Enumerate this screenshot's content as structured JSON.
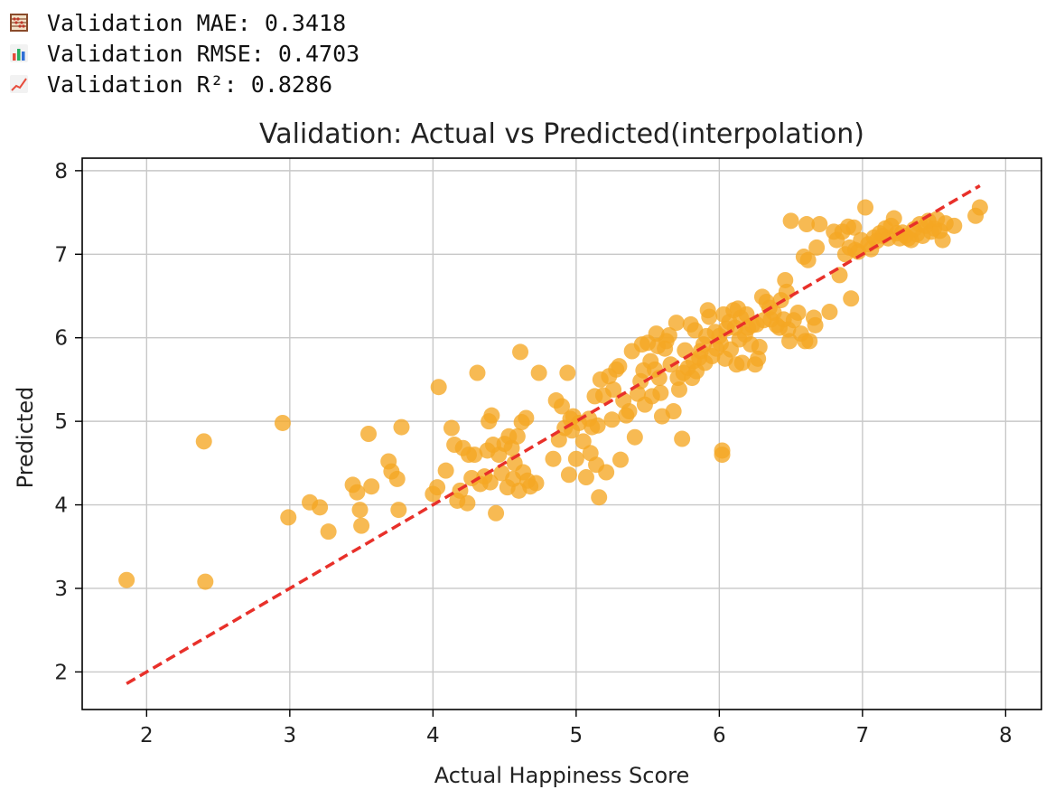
{
  "metrics": {
    "mae": {
      "icon": "abacus-icon",
      "text": "Validation MAE: 0.3418"
    },
    "rmse": {
      "icon": "bar-chart-icon",
      "text": "Validation RMSE: 0.4703"
    },
    "r2": {
      "icon": "line-chart-icon",
      "text": "Validation R²: 0.8286"
    }
  },
  "chart_data": {
    "type": "scatter",
    "title": "Validation: Actual vs Predicted(interpolation)",
    "xlabel": "Actual Happiness Score",
    "ylabel": "Predicted",
    "xlim": [
      1.55,
      8.25
    ],
    "ylim": [
      1.55,
      8.15
    ],
    "xticks": [
      2,
      3,
      4,
      5,
      6,
      7,
      8
    ],
    "yticks": [
      2,
      3,
      4,
      5,
      6,
      7,
      8
    ],
    "xtick_labels": [
      "2",
      "3",
      "4",
      "5",
      "6",
      "7",
      "8"
    ],
    "ytick_labels": [
      "2",
      "3",
      "4",
      "5",
      "6",
      "7",
      "8"
    ],
    "grid": true,
    "point_color": "#f5a623",
    "line_color": "#e8302a",
    "reference_line": {
      "x": [
        1.86,
        7.82
      ],
      "y": [
        1.86,
        7.82
      ],
      "style": "dashed"
    },
    "points": [
      [
        1.86,
        3.1
      ],
      [
        2.4,
        4.76
      ],
      [
        2.41,
        3.08
      ],
      [
        2.95,
        4.98
      ],
      [
        2.99,
        3.85
      ],
      [
        3.14,
        4.03
      ],
      [
        3.21,
        3.97
      ],
      [
        3.27,
        3.68
      ],
      [
        3.44,
        4.24
      ],
      [
        3.47,
        4.15
      ],
      [
        3.49,
        3.94
      ],
      [
        3.5,
        3.75
      ],
      [
        3.55,
        4.85
      ],
      [
        3.57,
        4.22
      ],
      [
        3.69,
        4.52
      ],
      [
        3.71,
        4.4
      ],
      [
        3.75,
        4.31
      ],
      [
        3.76,
        3.94
      ],
      [
        3.78,
        4.93
      ],
      [
        4.0,
        4.13
      ],
      [
        4.03,
        4.21
      ],
      [
        4.04,
        5.41
      ],
      [
        4.09,
        4.41
      ],
      [
        4.13,
        4.92
      ],
      [
        4.15,
        4.72
      ],
      [
        4.17,
        4.05
      ],
      [
        4.19,
        4.17
      ],
      [
        4.21,
        4.68
      ],
      [
        4.24,
        4.02
      ],
      [
        4.25,
        4.6
      ],
      [
        4.27,
        4.32
      ],
      [
        4.29,
        4.6
      ],
      [
        4.31,
        5.58
      ],
      [
        4.33,
        4.25
      ],
      [
        4.36,
        4.34
      ],
      [
        4.38,
        4.65
      ],
      [
        4.39,
        5.0
      ],
      [
        4.4,
        4.27
      ],
      [
        4.41,
        5.07
      ],
      [
        4.42,
        4.72
      ],
      [
        4.44,
        3.9
      ],
      [
        4.46,
        4.6
      ],
      [
        4.48,
        4.38
      ],
      [
        4.5,
        4.73
      ],
      [
        4.52,
        4.21
      ],
      [
        4.53,
        4.82
      ],
      [
        4.55,
        4.68
      ],
      [
        4.56,
        4.31
      ],
      [
        4.57,
        4.5
      ],
      [
        4.59,
        4.82
      ],
      [
        4.6,
        4.17
      ],
      [
        4.61,
        5.83
      ],
      [
        4.62,
        4.99
      ],
      [
        4.63,
        4.39
      ],
      [
        4.65,
        5.04
      ],
      [
        4.66,
        4.29
      ],
      [
        4.68,
        4.22
      ],
      [
        4.72,
        4.26
      ],
      [
        4.74,
        5.58
      ],
      [
        4.84,
        4.55
      ],
      [
        4.86,
        5.25
      ],
      [
        4.88,
        4.78
      ],
      [
        4.9,
        5.18
      ],
      [
        4.92,
        4.92
      ],
      [
        4.94,
        5.58
      ],
      [
        4.95,
        4.36
      ],
      [
        4.96,
        5.03
      ],
      [
        4.97,
        4.89
      ],
      [
        4.98,
        5.06
      ],
      [
        5.0,
        4.55
      ],
      [
        5.02,
        4.98
      ],
      [
        5.05,
        4.76
      ],
      [
        5.07,
        4.33
      ],
      [
        5.09,
        5.03
      ],
      [
        5.1,
        4.62
      ],
      [
        5.11,
        4.93
      ],
      [
        5.13,
        5.3
      ],
      [
        5.14,
        4.48
      ],
      [
        5.15,
        4.95
      ],
      [
        5.16,
        4.09
      ],
      [
        5.17,
        5.5
      ],
      [
        5.19,
        5.31
      ],
      [
        5.21,
        4.39
      ],
      [
        5.23,
        5.54
      ],
      [
        5.25,
        5.02
      ],
      [
        5.26,
        5.38
      ],
      [
        5.28,
        5.62
      ],
      [
        5.3,
        5.66
      ],
      [
        5.31,
        4.54
      ],
      [
        5.33,
        5.25
      ],
      [
        5.35,
        5.07
      ],
      [
        5.37,
        5.12
      ],
      [
        5.39,
        5.84
      ],
      [
        5.41,
        4.81
      ],
      [
        5.43,
        5.33
      ],
      [
        5.45,
        5.48
      ],
      [
        5.46,
        5.92
      ],
      [
        5.47,
        5.61
      ],
      [
        5.48,
        5.2
      ],
      [
        5.5,
        5.94
      ],
      [
        5.52,
        5.72
      ],
      [
        5.53,
        5.3
      ],
      [
        5.55,
        5.62
      ],
      [
        5.56,
        6.05
      ],
      [
        5.57,
        5.9
      ],
      [
        5.58,
        5.52
      ],
      [
        5.59,
        5.34
      ],
      [
        5.6,
        5.06
      ],
      [
        5.62,
        5.87
      ],
      [
        5.63,
        5.96
      ],
      [
        5.65,
        6.03
      ],
      [
        5.66,
        5.68
      ],
      [
        5.68,
        5.12
      ],
      [
        5.7,
        6.18
      ],
      [
        5.71,
        5.52
      ],
      [
        5.72,
        5.38
      ],
      [
        5.74,
        4.79
      ],
      [
        5.75,
        5.58
      ],
      [
        5.76,
        5.85
      ],
      [
        5.78,
        5.64
      ],
      [
        5.8,
        6.16
      ],
      [
        5.81,
        5.52
      ],
      [
        5.82,
        5.72
      ],
      [
        5.83,
        6.09
      ],
      [
        5.84,
        5.6
      ],
      [
        5.86,
        5.76
      ],
      [
        5.87,
        5.84
      ],
      [
        5.89,
        5.92
      ],
      [
        5.9,
        5.7
      ],
      [
        5.91,
        6.02
      ],
      [
        5.92,
        6.33
      ],
      [
        5.93,
        6.25
      ],
      [
        5.95,
        5.78
      ],
      [
        5.97,
        6.07
      ],
      [
        5.98,
        5.87
      ],
      [
        6.0,
        6.02
      ],
      [
        6.01,
        5.93
      ],
      [
        6.02,
        4.65
      ],
      [
        6.02,
        4.6
      ],
      [
        6.03,
        6.28
      ],
      [
        6.04,
        5.75
      ],
      [
        6.05,
        6.11
      ],
      [
        6.07,
        6.19
      ],
      [
        6.08,
        5.86
      ],
      [
        6.1,
        6.33
      ],
      [
        6.11,
        6.12
      ],
      [
        6.12,
        5.68
      ],
      [
        6.13,
        6.35
      ],
      [
        6.14,
        5.98
      ],
      [
        6.15,
        6.24
      ],
      [
        6.16,
        5.7
      ],
      [
        6.18,
        6.04
      ],
      [
        6.19,
        6.28
      ],
      [
        6.2,
        6.12
      ],
      [
        6.22,
        5.92
      ],
      [
        6.23,
        6.15
      ],
      [
        6.25,
        5.68
      ],
      [
        6.26,
        6.16
      ],
      [
        6.27,
        5.75
      ],
      [
        6.28,
        5.89
      ],
      [
        6.3,
        6.49
      ],
      [
        6.31,
        6.21
      ],
      [
        6.33,
        6.43
      ],
      [
        6.35,
        6.36
      ],
      [
        6.36,
        6.22
      ],
      [
        6.38,
        6.3
      ],
      [
        6.4,
        6.15
      ],
      [
        6.42,
        6.12
      ],
      [
        6.43,
        6.45
      ],
      [
        6.45,
        6.22
      ],
      [
        6.46,
        6.69
      ],
      [
        6.47,
        6.55
      ],
      [
        6.48,
        6.1
      ],
      [
        6.49,
        5.96
      ],
      [
        6.5,
        7.4
      ],
      [
        6.52,
        6.21
      ],
      [
        6.55,
        6.3
      ],
      [
        6.57,
        6.05
      ],
      [
        6.59,
        6.97
      ],
      [
        6.6,
        5.96
      ],
      [
        6.61,
        7.36
      ],
      [
        6.62,
        6.93
      ],
      [
        6.63,
        5.96
      ],
      [
        6.66,
        6.24
      ],
      [
        6.67,
        6.15
      ],
      [
        6.68,
        7.08
      ],
      [
        6.7,
        7.36
      ],
      [
        6.77,
        6.31
      ],
      [
        6.8,
        7.27
      ],
      [
        6.82,
        7.17
      ],
      [
        6.84,
        6.75
      ],
      [
        6.86,
        7.27
      ],
      [
        6.88,
        7.0
      ],
      [
        6.9,
        7.33
      ],
      [
        6.91,
        7.08
      ],
      [
        6.92,
        6.47
      ],
      [
        6.94,
        7.32
      ],
      [
        6.95,
        7.05
      ],
      [
        6.97,
        7.03
      ],
      [
        6.99,
        7.17
      ],
      [
        7.02,
        7.56
      ],
      [
        7.04,
        7.12
      ],
      [
        7.06,
        7.06
      ],
      [
        7.08,
        7.2
      ],
      [
        7.1,
        7.16
      ],
      [
        7.12,
        7.25
      ],
      [
        7.14,
        7.22
      ],
      [
        7.16,
        7.31
      ],
      [
        7.18,
        7.19
      ],
      [
        7.2,
        7.34
      ],
      [
        7.22,
        7.43
      ],
      [
        7.24,
        7.25
      ],
      [
        7.26,
        7.19
      ],
      [
        7.28,
        7.26
      ],
      [
        7.3,
        7.22
      ],
      [
        7.32,
        7.19
      ],
      [
        7.34,
        7.17
      ],
      [
        7.36,
        7.3
      ],
      [
        7.38,
        7.24
      ],
      [
        7.4,
        7.36
      ],
      [
        7.42,
        7.22
      ],
      [
        7.44,
        7.34
      ],
      [
        7.46,
        7.4
      ],
      [
        7.48,
        7.27
      ],
      [
        7.5,
        7.31
      ],
      [
        7.52,
        7.42
      ],
      [
        7.54,
        7.28
      ],
      [
        7.56,
        7.17
      ],
      [
        7.58,
        7.37
      ],
      [
        7.64,
        7.34
      ],
      [
        7.79,
        7.46
      ],
      [
        7.82,
        7.56
      ]
    ]
  }
}
